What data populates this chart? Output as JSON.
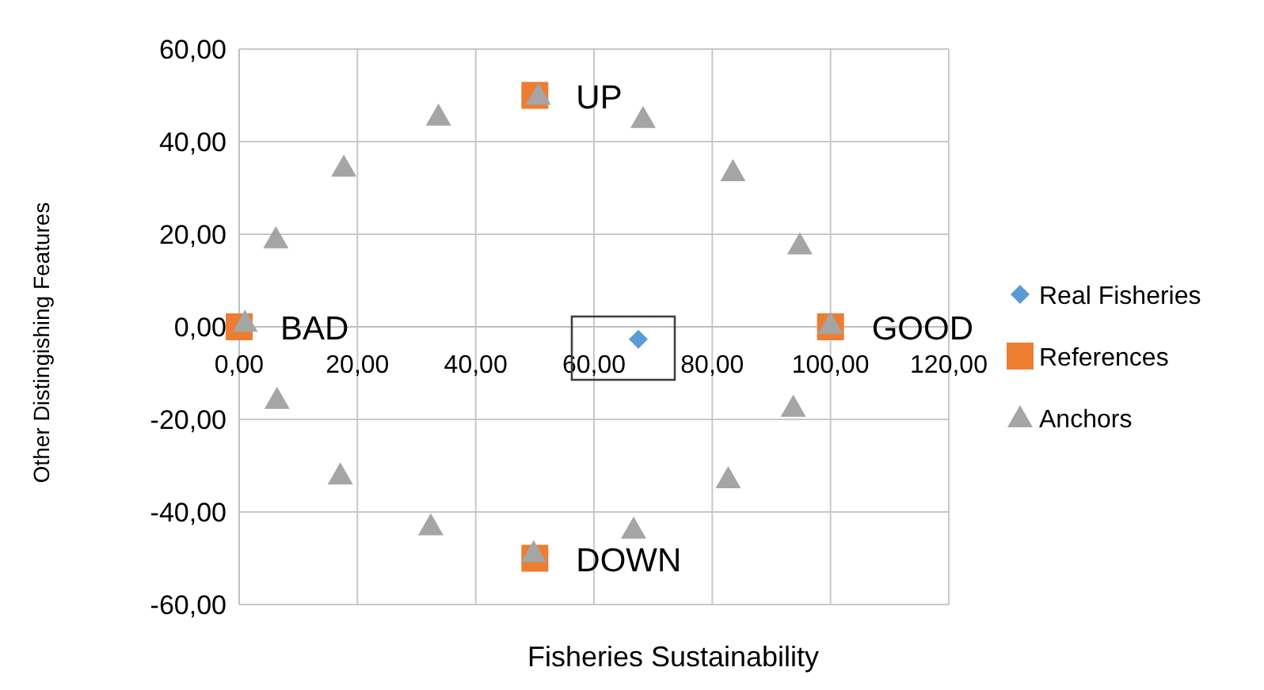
{
  "chart_data": {
    "type": "scatter",
    "xlabel": "Fisheries Sustainability",
    "ylabel": "Other Distingishing Features",
    "xlim": [
      0,
      120
    ],
    "xticks": [
      {
        "value": 0,
        "label": "0,00"
      },
      {
        "value": 20,
        "label": "20,00"
      },
      {
        "value": 40,
        "label": "40,00"
      },
      {
        "value": 60,
        "label": "60,00"
      },
      {
        "value": 80,
        "label": "80,00"
      },
      {
        "value": 100,
        "label": "100,00"
      },
      {
        "value": 120,
        "label": "120,00"
      }
    ],
    "ylim": [
      -60,
      60
    ],
    "yticks": [
      {
        "value": -60,
        "label": "-60,00"
      },
      {
        "value": -40,
        "label": "-40,00"
      },
      {
        "value": -20,
        "label": "-20,00"
      },
      {
        "value": 0,
        "label": "0,00"
      },
      {
        "value": 20,
        "label": "20,00"
      },
      {
        "value": 40,
        "label": "40,00"
      },
      {
        "value": 60,
        "label": "60,00"
      }
    ],
    "grid": true,
    "legend": "right",
    "series": [
      {
        "name": "Real Fisheries",
        "color": "#5b9bd5",
        "marker": "diamond",
        "x": [
          67.5
        ],
        "values": [
          -2.7
        ]
      },
      {
        "name": "References",
        "color": "#ed7d31",
        "marker": "square",
        "x": [
          0,
          50,
          100,
          50
        ],
        "values": [
          0,
          50,
          0,
          -50
        ]
      },
      {
        "name": "Anchors",
        "color": "#a5a5a5",
        "marker": "triangle",
        "x": [
          1,
          6.2,
          17.7,
          33.7,
          50.6,
          68.3,
          83.5,
          94.8,
          100,
          93.7,
          82.7,
          66.7,
          49.8,
          32.4,
          17.1,
          6.4
        ],
        "values": [
          1,
          19,
          34.5,
          45.5,
          50,
          45,
          33.5,
          17.7,
          0.5,
          -17.4,
          -32.8,
          -43.7,
          -48.8,
          -43,
          -32,
          -15.7
        ]
      }
    ],
    "annotations": [
      {
        "text": "UP",
        "x": 50,
        "y": 50
      },
      {
        "text": "BAD",
        "x": 0,
        "y": 0
      },
      {
        "text": "GOOD",
        "x": 100,
        "y": 0
      },
      {
        "text": "DOWN",
        "x": 50,
        "y": -50
      }
    ]
  }
}
